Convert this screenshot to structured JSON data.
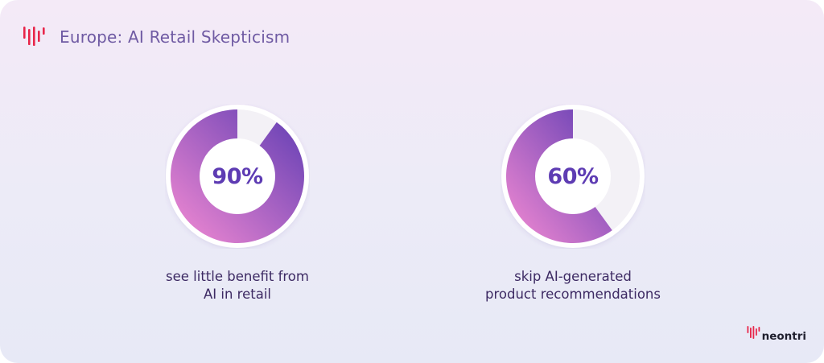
{
  "header": {
    "title": "Europe: AI Retail Skepticism",
    "brand_icon": "neontri-waveform-icon"
  },
  "colors": {
    "ring_start": "#f58bd3",
    "ring_end": "#5e3cb3",
    "ring_track": "#f3f1f6",
    "percent_text": "#5e3cb3",
    "title_text": "#6f5aa3",
    "caption_text": "#3d2a63",
    "brand_red": "#e8264a"
  },
  "chart_data": [
    {
      "type": "pie",
      "variant": "donut",
      "values": [
        90,
        10
      ],
      "value_label": "90%",
      "caption_lines": [
        "see little benefit from",
        "AI in retail"
      ]
    },
    {
      "type": "pie",
      "variant": "donut",
      "values": [
        60,
        40
      ],
      "value_label": "60%",
      "caption_lines": [
        "skip AI-generated",
        "product recommendations"
      ]
    }
  ],
  "footer": {
    "logo_text": "neontri"
  }
}
